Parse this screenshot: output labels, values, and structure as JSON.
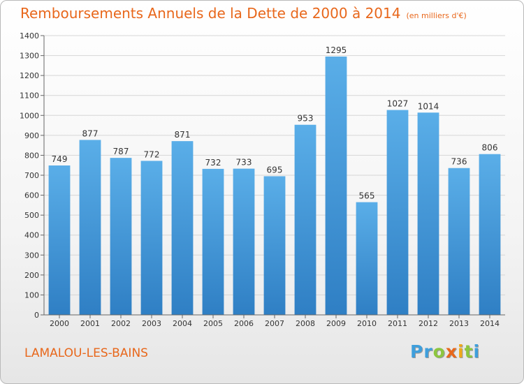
{
  "header": {
    "title": "Remboursements Annuels de la Dette de 2000 à 2014",
    "unit": "(en milliers d'€)"
  },
  "footer": {
    "commune": "LAMALOU-LES-BAINS",
    "logo_letters": [
      "P",
      "r",
      "o",
      "x",
      "i",
      "t",
      "i"
    ]
  },
  "colors": {
    "title": "#e8671b",
    "bar_top": "#5aaee8",
    "bar_bottom": "#2f7fc4",
    "logo": [
      "#3f9fdc",
      "#3f9fdc",
      "#8dc63f",
      "#e8671b",
      "#f0a81a",
      "#8dc63f",
      "#3f9fdc"
    ]
  },
  "chart_data": {
    "type": "bar",
    "title": "Remboursements Annuels de la Dette de 2000 à 2014",
    "subtitle": "(en milliers d'€)",
    "categories": [
      "2000",
      "2001",
      "2002",
      "2003",
      "2004",
      "2005",
      "2006",
      "2007",
      "2008",
      "2009",
      "2010",
      "2011",
      "2012",
      "2013",
      "2014"
    ],
    "values": [
      749,
      877,
      787,
      772,
      871,
      732,
      733,
      695,
      953,
      1295,
      565,
      1027,
      1014,
      736,
      806
    ],
    "ylim": [
      0,
      1400
    ],
    "yticks": [
      0,
      100,
      200,
      300,
      400,
      500,
      600,
      700,
      800,
      900,
      1000,
      1100,
      1200,
      1300,
      1400
    ],
    "grid": true,
    "legend": "none"
  }
}
